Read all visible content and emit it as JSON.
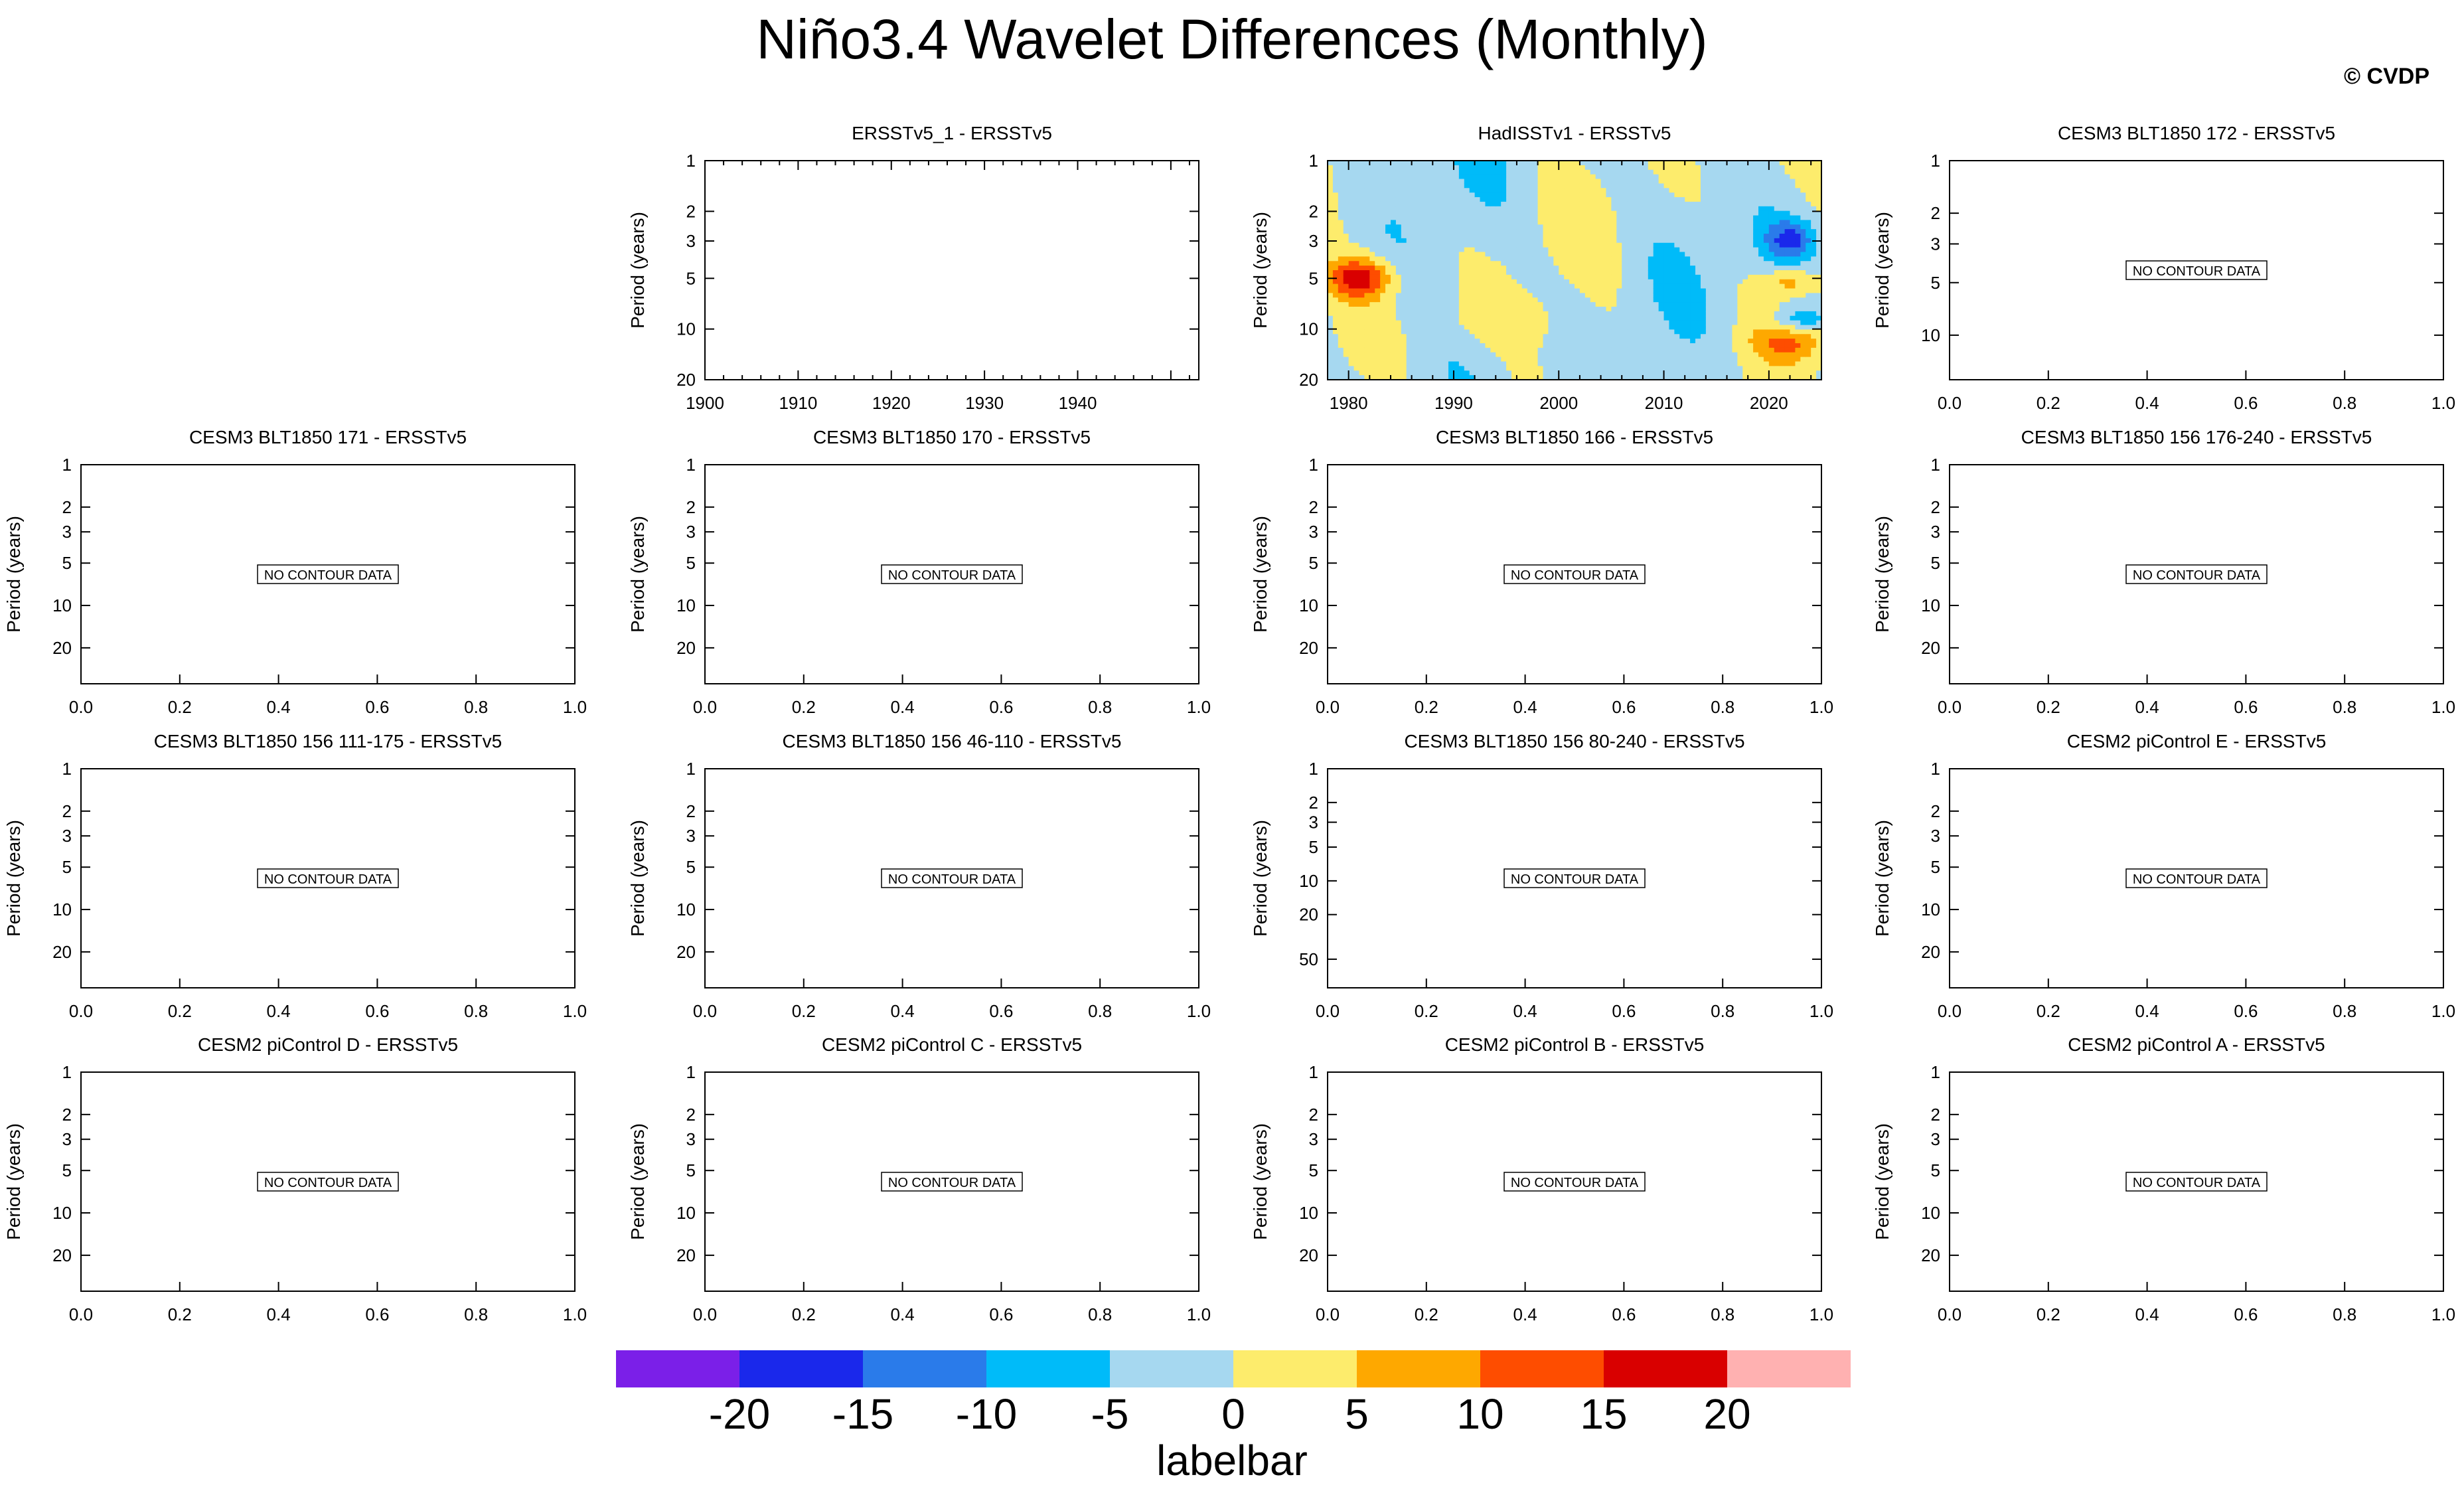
{
  "title": "Niño3.4 Wavelet Differences (Monthly)",
  "watermark": "© CVDP",
  "no_data_text": "NO CONTOUR DATA",
  "ylabel": "Period (years)",
  "colors": {
    "axis": "#000000",
    "watermark": "#d3d3d3",
    "no_data_box": "#000000"
  },
  "labelbar": {
    "label": "labelbar",
    "tick_labels": [
      "-20",
      "-15",
      "-10",
      "-5",
      "0",
      "5",
      "10",
      "15",
      "20"
    ],
    "colors": [
      "#7b1fe8",
      "#1a28eb",
      "#2a7bea",
      "#00bbf9",
      "#a6d8f0",
      "#fdec6c",
      "#fea800",
      "#fe4d00",
      "#d90000",
      "#ffb1b1"
    ]
  },
  "chart_data": [
    {
      "type": "heatmap",
      "title": "ERSSTv5_1 - ERSSTv5",
      "ylabel": "Period (years)",
      "yscale": "log",
      "yticks": [
        1,
        2,
        3,
        5,
        10,
        20
      ],
      "xticks": [
        "1900",
        "1910",
        "1920",
        "1930",
        "1940"
      ],
      "xlim": [
        1900,
        1953
      ],
      "ylim": [
        20,
        1
      ],
      "has_data": false,
      "no_data": false
    },
    {
      "type": "heatmap",
      "title": "HadISSTv1 - ERSSTv5",
      "ylabel": "Period (years)",
      "yscale": "log",
      "yticks": [
        1,
        2,
        3,
        5,
        10,
        20
      ],
      "xticks": [
        "1980",
        "1990",
        "2000",
        "2010",
        "2020"
      ],
      "xlim": [
        1978,
        2025
      ],
      "ylim": [
        20,
        1
      ],
      "has_data": true,
      "no_data": false,
      "dominant_values": {
        "background": "-5 to 0",
        "patches": "0 to 5",
        "extremes": "up to 15-20 near 5 yr around 1980; down to -15 near 3 yr around 2022"
      }
    },
    {
      "type": "heatmap",
      "title": "CESM3 BLT1850 172 - ERSSTv5",
      "ylabel": "Period (years)",
      "yticks": [
        1,
        2,
        3,
        5,
        10
      ],
      "xticks": [
        "0.0",
        "0.2",
        "0.4",
        "0.6",
        "0.8",
        "1.0"
      ],
      "has_data": false,
      "no_data": true
    },
    {
      "type": "heatmap",
      "title": "CESM3 BLT1850 171 - ERSSTv5",
      "ylabel": "Period (years)",
      "yticks": [
        1,
        2,
        3,
        5,
        10,
        20
      ],
      "xticks": [
        "0.0",
        "0.2",
        "0.4",
        "0.6",
        "0.8",
        "1.0"
      ],
      "has_data": false,
      "no_data": true
    },
    {
      "type": "heatmap",
      "title": "CESM3 BLT1850 170 - ERSSTv5",
      "ylabel": "Period (years)",
      "yticks": [
        1,
        2,
        3,
        5,
        10,
        20
      ],
      "xticks": [
        "0.0",
        "0.2",
        "0.4",
        "0.6",
        "0.8",
        "1.0"
      ],
      "has_data": false,
      "no_data": true
    },
    {
      "type": "heatmap",
      "title": "CESM3 BLT1850 166 - ERSSTv5",
      "ylabel": "Period (years)",
      "yticks": [
        1,
        2,
        3,
        5,
        10,
        20
      ],
      "xticks": [
        "0.0",
        "0.2",
        "0.4",
        "0.6",
        "0.8",
        "1.0"
      ],
      "has_data": false,
      "no_data": true
    },
    {
      "type": "heatmap",
      "title": "CESM3 BLT1850 156 176-240 - ERSSTv5",
      "ylabel": "Period (years)",
      "yticks": [
        1,
        2,
        3,
        5,
        10,
        20
      ],
      "xticks": [
        "0.0",
        "0.2",
        "0.4",
        "0.6",
        "0.8",
        "1.0"
      ],
      "has_data": false,
      "no_data": true
    },
    {
      "type": "heatmap",
      "title": "CESM3 BLT1850 156 111-175 - ERSSTv5",
      "ylabel": "Period (years)",
      "yticks": [
        1,
        2,
        3,
        5,
        10,
        20
      ],
      "xticks": [
        "0.0",
        "0.2",
        "0.4",
        "0.6",
        "0.8",
        "1.0"
      ],
      "has_data": false,
      "no_data": true
    },
    {
      "type": "heatmap",
      "title": "CESM3 BLT1850 156 46-110 - ERSSTv5",
      "ylabel": "Period (years)",
      "yticks": [
        1,
        2,
        3,
        5,
        10,
        20
      ],
      "xticks": [
        "0.0",
        "0.2",
        "0.4",
        "0.6",
        "0.8",
        "1.0"
      ],
      "has_data": false,
      "no_data": true
    },
    {
      "type": "heatmap",
      "title": "CESM3 BLT1850 156 80-240 - ERSSTv5",
      "ylabel": "Period (years)",
      "yticks": [
        1,
        2,
        3,
        5,
        10,
        20,
        50
      ],
      "xticks": [
        "0.0",
        "0.2",
        "0.4",
        "0.6",
        "0.8",
        "1.0"
      ],
      "has_data": false,
      "no_data": true
    },
    {
      "type": "heatmap",
      "title": "CESM2 piControl E - ERSSTv5",
      "ylabel": "Period (years)",
      "yticks": [
        1,
        2,
        3,
        5,
        10,
        20
      ],
      "xticks": [
        "0.0",
        "0.2",
        "0.4",
        "0.6",
        "0.8",
        "1.0"
      ],
      "has_data": false,
      "no_data": true
    },
    {
      "type": "heatmap",
      "title": "CESM2 piControl D - ERSSTv5",
      "ylabel": "Period (years)",
      "yticks": [
        1,
        2,
        3,
        5,
        10,
        20
      ],
      "xticks": [
        "0.0",
        "0.2",
        "0.4",
        "0.6",
        "0.8",
        "1.0"
      ],
      "has_data": false,
      "no_data": true
    },
    {
      "type": "heatmap",
      "title": "CESM2 piControl C - ERSSTv5",
      "ylabel": "Period (years)",
      "yticks": [
        1,
        2,
        3,
        5,
        10,
        20
      ],
      "xticks": [
        "0.0",
        "0.2",
        "0.4",
        "0.6",
        "0.8",
        "1.0"
      ],
      "has_data": false,
      "no_data": true
    },
    {
      "type": "heatmap",
      "title": "CESM2 piControl B - ERSSTv5",
      "ylabel": "Period (years)",
      "yticks": [
        1,
        2,
        3,
        5,
        10,
        20
      ],
      "xticks": [
        "0.0",
        "0.2",
        "0.4",
        "0.6",
        "0.8",
        "1.0"
      ],
      "has_data": false,
      "no_data": true
    },
    {
      "type": "heatmap",
      "title": "CESM2 piControl A - ERSSTv5",
      "ylabel": "Period (years)",
      "yticks": [
        1,
        2,
        3,
        5,
        10,
        20
      ],
      "xticks": [
        "0.0",
        "0.2",
        "0.4",
        "0.6",
        "0.8",
        "1.0"
      ],
      "has_data": false,
      "no_data": true
    }
  ]
}
